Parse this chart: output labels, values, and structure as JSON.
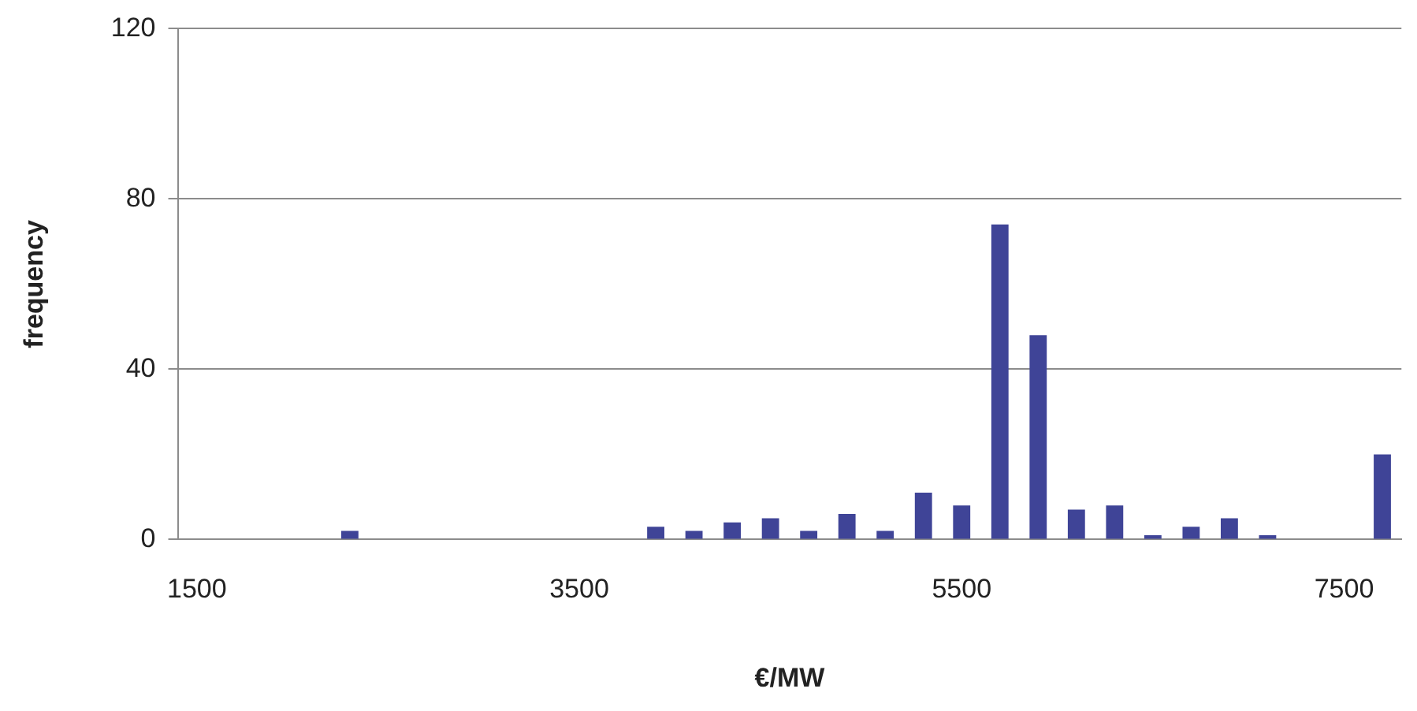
{
  "chart_data": {
    "type": "bar",
    "xlabel": "€/MW",
    "ylabel": "frequency",
    "categories": [
      "1500",
      null,
      null,
      null,
      null,
      null,
      null,
      null,
      null,
      null,
      "3500",
      null,
      null,
      null,
      null,
      null,
      null,
      null,
      null,
      null,
      "5500",
      null,
      null,
      null,
      null,
      null,
      null,
      null,
      null,
      null,
      "7500",
      null
    ],
    "values": [
      0,
      0,
      0,
      0,
      2,
      0,
      0,
      0,
      0,
      0,
      0,
      0,
      3,
      2,
      4,
      5,
      2,
      6,
      2,
      11,
      8,
      74,
      48,
      7,
      8,
      1,
      3,
      5,
      1,
      0,
      0,
      20
    ],
    "color": "#3f4497",
    "ylim": [
      0,
      120
    ],
    "yticks": [
      0,
      40,
      80,
      120
    ],
    "grid": "y",
    "legend": false
  }
}
